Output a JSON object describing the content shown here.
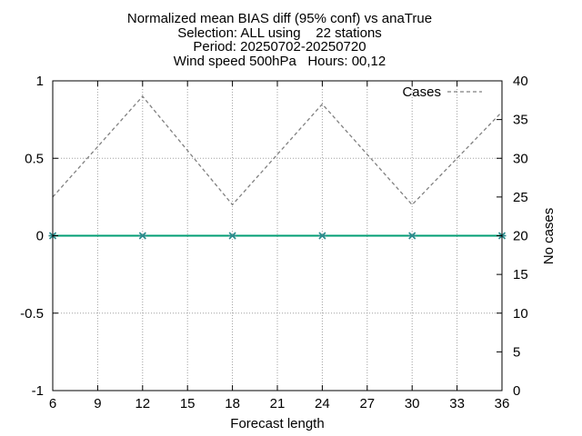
{
  "chart_data": {
    "type": "line",
    "title_lines": [
      "Normalized mean BIAS diff (95% conf) vs anaTrue",
      "Selection: ALL using    22 stations",
      "Period: 20250702-20250720",
      "Wind speed 500hPa   Hours: 00,12"
    ],
    "xlabel": "Forecast length",
    "ylabel": "",
    "y2label": "No cases",
    "xlim": [
      6,
      36
    ],
    "ylim": [
      -1,
      1
    ],
    "y2lim": [
      0,
      40
    ],
    "x_ticks": [
      "6",
      "9",
      "12",
      "15",
      "18",
      "21",
      "24",
      "27",
      "30",
      "33",
      "36"
    ],
    "y_ticks": [
      "-1",
      "-0.5",
      "0",
      "0.5",
      "1"
    ],
    "y2_ticks": [
      "0",
      "5",
      "10",
      "15",
      "20",
      "25",
      "30",
      "35",
      "40"
    ],
    "grid": true,
    "legend_position": "top-right",
    "series": [
      {
        "name": "",
        "axis": "left",
        "style": "solid-with-markers",
        "color": "#009e73",
        "marker_color": "#2a8c8c",
        "x": [
          6,
          12,
          18,
          24,
          30,
          36
        ],
        "y": [
          0,
          0,
          0,
          0,
          0,
          0
        ]
      },
      {
        "name": "Cases",
        "axis": "right",
        "style": "dashed",
        "color": "#808080",
        "x": [
          6,
          12,
          18,
          24,
          30,
          36
        ],
        "y": [
          25,
          38,
          24,
          37,
          24,
          36
        ]
      }
    ]
  }
}
